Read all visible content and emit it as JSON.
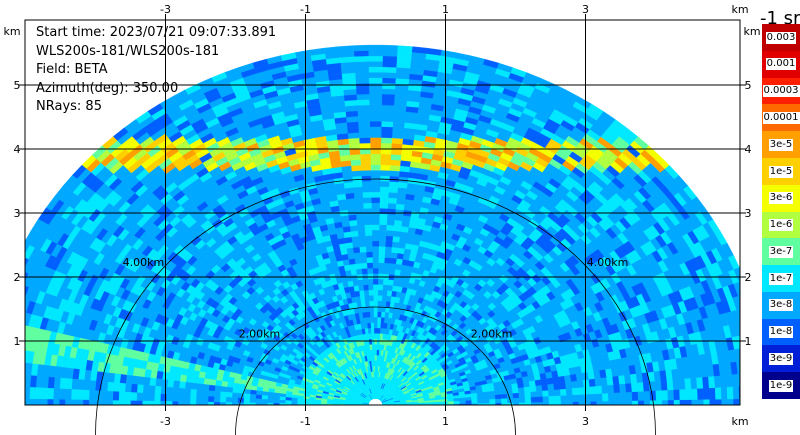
{
  "info": {
    "start_time": "Start time: 2023/07/21 09:07:33.891",
    "instrument": "WLS200s-181/WLS200s-181",
    "field": "Field: BETA",
    "azimuth": "Azimuth(deg): 350.00",
    "nrays": "NRays: 85"
  },
  "axes": {
    "x_unit": "km",
    "y_unit": "km",
    "x_ticks": [
      -3,
      -1,
      1,
      3
    ],
    "y_ticks": [
      1,
      2,
      3,
      4,
      5
    ],
    "x_range": [
      -5.9,
      5.9
    ],
    "y_range": [
      0,
      5.9
    ]
  },
  "range_rings": [
    {
      "radius_km": 2,
      "label": "2.00km"
    },
    {
      "radius_km": 4,
      "label": "4.00km"
    }
  ],
  "colorbar": {
    "title": "-1 sr",
    "labels": [
      "0.003",
      "0.001",
      "0.0003",
      "0.0001",
      "3e-5",
      "1e-5",
      "3e-6",
      "1e-6",
      "3e-7",
      "1e-7",
      "3e-8",
      "1e-8",
      "3e-9",
      "1e-9"
    ],
    "colors": [
      "#c00000",
      "#e00000",
      "#ff2000",
      "#ff6a00",
      "#ffa000",
      "#ffd000",
      "#f4ff00",
      "#b0ff40",
      "#60ffa0",
      "#00e8ff",
      "#00a8ff",
      "#0060ff",
      "#0020d8",
      "#00008c"
    ]
  }
}
